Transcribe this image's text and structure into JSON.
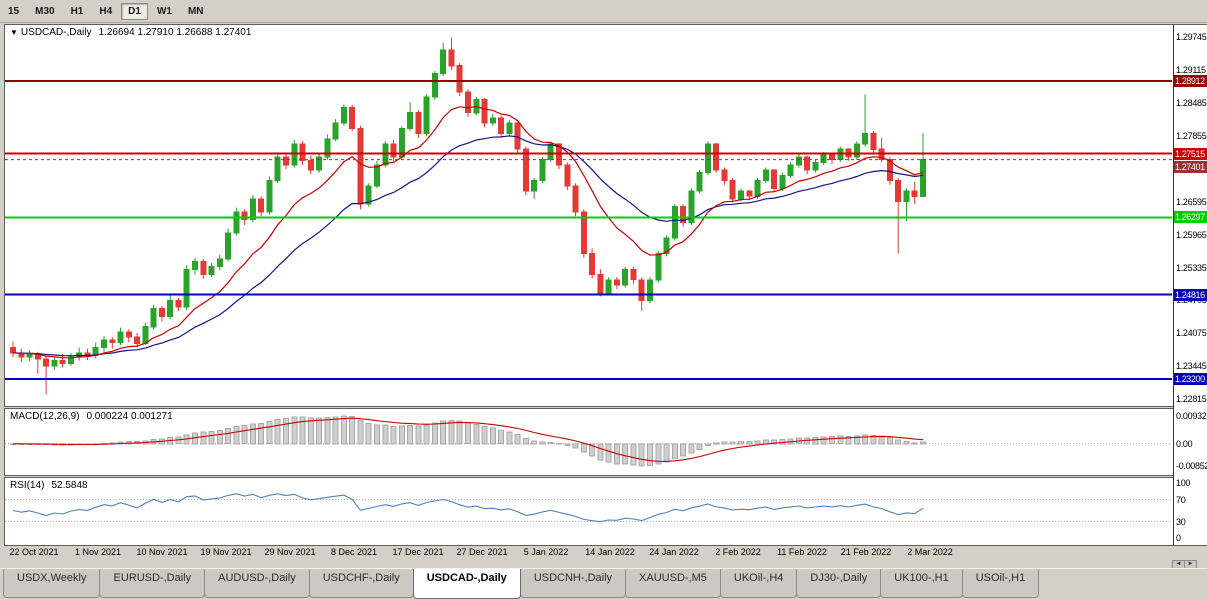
{
  "toolbar": {
    "timeframes": [
      "15",
      "M30",
      "H1",
      "H4",
      "D1",
      "W1",
      "MN"
    ],
    "active": "D1"
  },
  "tabs": {
    "items": [
      "USDX,Weekly",
      "EURUSD-,Daily",
      "AUDUSD-,Daily",
      "USDCHF-,Daily",
      "USDCAD-,Daily",
      "USDCNH-,Daily",
      "XAUUSD-,M5",
      "UKOil-,H4",
      "DJ30-,Daily",
      "UK100-,H1",
      "USOil-,H1"
    ],
    "active": "USDCAD-,Daily"
  },
  "scroll": {
    "left_arrow": "◄",
    "right_arrow": "►"
  },
  "chart_data": {
    "type": "candlestick",
    "collapse_icon": "▼",
    "title": "USDCAD-,Daily",
    "current_ohlc_text": "1.26694 1.27910 1.26688 1.27401",
    "current_ohlc": {
      "open": 1.26694,
      "high": 1.2791,
      "low": 1.26688,
      "close": 1.27401
    },
    "price_max": 1.2998,
    "price_min": 1.2272,
    "price_ticks": [
      "1.29745",
      "1.29115",
      "1.28485",
      "1.27855",
      "1.27225",
      "1.26595",
      "1.25965",
      "1.25335",
      "1.24705",
      "1.24075",
      "1.23445",
      "1.22815"
    ],
    "x_labels": [
      "22 Oct 2021",
      "1 Nov 2021",
      "10 Nov 2021",
      "19 Nov 2021",
      "29 Nov 2021",
      "8 Dec 2021",
      "17 Dec 2021",
      "27 Dec 2021",
      "5 Jan 2022",
      "14 Jan 2022",
      "24 Jan 2022",
      "2 Feb 2022",
      "11 Feb 2022",
      "21 Feb 2022",
      "2 Mar 2022"
    ],
    "candle_up_color": "#29a329",
    "candle_down_color": "#e53935",
    "hlines": [
      {
        "price": 1.28912,
        "label": "1.28912",
        "color": "#990000"
      },
      {
        "price": 1.27515,
        "label": "1.27515",
        "color": "#cc0000"
      },
      {
        "price": 1.26297,
        "label": "1.26297",
        "color": "#00cc00"
      },
      {
        "price": 1.24816,
        "label": "1.24816",
        "color": "#0000bb"
      },
      {
        "price": 1.232,
        "label": "1.23200",
        "color": "#0000bb"
      }
    ],
    "current_price": {
      "price": 1.27401,
      "label": "1.27401",
      "color": "#993333"
    },
    "overlays": {
      "ma_fast": {
        "period": 12,
        "color": "#cc0000"
      },
      "ma_slow": {
        "period": 26,
        "color": "#151589"
      }
    },
    "macd": {
      "label": "MACD(12,26,9)",
      "values_text": "0.000224 0.001271",
      "params": [
        12,
        26,
        9
      ],
      "axis_labels": [
        "0.00932",
        "0.00",
        "-0.00852"
      ],
      "hist_color": "#cfcfcf",
      "hist_border": "#a9a9a9",
      "signal_color": "#cc0000"
    },
    "rsi": {
      "label": "RSI(14)",
      "value_text": "52.5848",
      "period": 14,
      "axis_labels": [
        "100",
        "70",
        "30",
        "0"
      ],
      "levels": [
        70,
        30
      ],
      "line_color": "#4f81bd"
    },
    "candles": [
      [
        1.238,
        1.2392,
        1.2362,
        1.237
      ],
      [
        1.237,
        1.2378,
        1.2352,
        1.2362
      ],
      [
        1.2362,
        1.2375,
        1.2355,
        1.2368
      ],
      [
        1.2368,
        1.2372,
        1.233,
        1.2358
      ],
      [
        1.2358,
        1.2365,
        1.229,
        1.2345
      ],
      [
        1.2345,
        1.2362,
        1.2338,
        1.2355
      ],
      [
        1.2355,
        1.2368,
        1.2342,
        1.235
      ],
      [
        1.235,
        1.237,
        1.2345,
        1.2362
      ],
      [
        1.2362,
        1.238,
        1.2355,
        1.237
      ],
      [
        1.237,
        1.2378,
        1.2356,
        1.2365
      ],
      [
        1.2365,
        1.239,
        1.236,
        1.238
      ],
      [
        1.238,
        1.2402,
        1.2372,
        1.2395
      ],
      [
        1.2395,
        1.24,
        1.2378,
        1.239
      ],
      [
        1.239,
        1.2418,
        1.2385,
        1.241
      ],
      [
        1.241,
        1.2415,
        1.239,
        1.24
      ],
      [
        1.24,
        1.2408,
        1.238,
        1.2388
      ],
      [
        1.2388,
        1.2428,
        1.2385,
        1.242
      ],
      [
        1.242,
        1.2462,
        1.2415,
        1.2455
      ],
      [
        1.2455,
        1.246,
        1.243,
        1.244
      ],
      [
        1.244,
        1.248,
        1.2435,
        1.247
      ],
      [
        1.247,
        1.2475,
        1.245,
        1.2458
      ],
      [
        1.2458,
        1.2538,
        1.2452,
        1.253
      ],
      [
        1.253,
        1.2552,
        1.252,
        1.2545
      ],
      [
        1.2545,
        1.255,
        1.2512,
        1.252
      ],
      [
        1.252,
        1.2542,
        1.2515,
        1.2535
      ],
      [
        1.2535,
        1.2558,
        1.2528,
        1.255
      ],
      [
        1.255,
        1.2608,
        1.2545,
        1.26
      ],
      [
        1.26,
        1.2648,
        1.2595,
        1.264
      ],
      [
        1.264,
        1.2645,
        1.2615,
        1.2625
      ],
      [
        1.2625,
        1.2672,
        1.262,
        1.2665
      ],
      [
        1.2665,
        1.267,
        1.2632,
        1.264
      ],
      [
        1.264,
        1.2708,
        1.2635,
        1.27
      ],
      [
        1.27,
        1.2752,
        1.2695,
        1.2745
      ],
      [
        1.2745,
        1.275,
        1.2722,
        1.273
      ],
      [
        1.273,
        1.2778,
        1.2725,
        1.277
      ],
      [
        1.277,
        1.2775,
        1.273,
        1.2738
      ],
      [
        1.2738,
        1.2748,
        1.2712,
        1.272
      ],
      [
        1.272,
        1.275,
        1.2715,
        1.2745
      ],
      [
        1.2745,
        1.2788,
        1.274,
        1.278
      ],
      [
        1.278,
        1.2818,
        1.2775,
        1.281
      ],
      [
        1.281,
        1.2846,
        1.2805,
        1.284
      ],
      [
        1.284,
        1.2845,
        1.2795,
        1.28
      ],
      [
        1.28,
        1.2805,
        1.2645,
        1.2655
      ],
      [
        1.2655,
        1.2695,
        1.265,
        1.269
      ],
      [
        1.269,
        1.2738,
        1.2685,
        1.273
      ],
      [
        1.273,
        1.2775,
        1.2725,
        1.277
      ],
      [
        1.277,
        1.2778,
        1.2738,
        1.2745
      ],
      [
        1.2745,
        1.2805,
        1.274,
        1.28
      ],
      [
        1.28,
        1.285,
        1.2795,
        1.283
      ],
      [
        1.283,
        1.2835,
        1.2782,
        1.279
      ],
      [
        1.279,
        1.2865,
        1.2785,
        1.286
      ],
      [
        1.286,
        1.291,
        1.2855,
        1.2905
      ],
      [
        1.2905,
        1.2964,
        1.29,
        1.295
      ],
      [
        1.295,
        1.2974,
        1.2912,
        1.292
      ],
      [
        1.292,
        1.2925,
        1.2862,
        1.287
      ],
      [
        1.287,
        1.2875,
        1.2822,
        1.283
      ],
      [
        1.283,
        1.286,
        1.2825,
        1.2855
      ],
      [
        1.2855,
        1.2858,
        1.2802,
        1.281
      ],
      [
        1.281,
        1.2828,
        1.2805,
        1.282
      ],
      [
        1.282,
        1.2825,
        1.2782,
        1.279
      ],
      [
        1.279,
        1.2815,
        1.2785,
        1.281
      ],
      [
        1.281,
        1.2812,
        1.2752,
        1.276
      ],
      [
        1.276,
        1.2765,
        1.2672,
        1.268
      ],
      [
        1.268,
        1.2705,
        1.2665,
        1.27
      ],
      [
        1.27,
        1.2745,
        1.2695,
        1.274
      ],
      [
        1.274,
        1.2775,
        1.2735,
        1.277
      ],
      [
        1.277,
        1.2772,
        1.2722,
        1.273
      ],
      [
        1.273,
        1.2735,
        1.2682,
        1.269
      ],
      [
        1.269,
        1.2695,
        1.2632,
        1.264
      ],
      [
        1.264,
        1.2645,
        1.2552,
        1.256
      ],
      [
        1.256,
        1.257,
        1.2512,
        1.252
      ],
      [
        1.252,
        1.253,
        1.2478,
        1.2485
      ],
      [
        1.2485,
        1.2515,
        1.248,
        1.251
      ],
      [
        1.251,
        1.2515,
        1.2492,
        1.25
      ],
      [
        1.25,
        1.2535,
        1.2495,
        1.253
      ],
      [
        1.253,
        1.2535,
        1.2502,
        1.251
      ],
      [
        1.251,
        1.2515,
        1.245,
        1.247
      ],
      [
        1.247,
        1.2515,
        1.2465,
        1.251
      ],
      [
        1.251,
        1.2565,
        1.2505,
        1.256
      ],
      [
        1.256,
        1.2595,
        1.2555,
        1.259
      ],
      [
        1.259,
        1.2655,
        1.2585,
        1.265
      ],
      [
        1.265,
        1.2655,
        1.2612,
        1.262
      ],
      [
        1.262,
        1.2685,
        1.2615,
        1.268
      ],
      [
        1.268,
        1.272,
        1.2675,
        1.2715
      ],
      [
        1.2715,
        1.2775,
        1.271,
        1.277
      ],
      [
        1.277,
        1.2772,
        1.2715,
        1.272
      ],
      [
        1.272,
        1.2725,
        1.2692,
        1.27
      ],
      [
        1.27,
        1.2705,
        1.2658,
        1.2665
      ],
      [
        1.2665,
        1.2685,
        1.266,
        1.268
      ],
      [
        1.268,
        1.2682,
        1.2662,
        1.267
      ],
      [
        1.267,
        1.2705,
        1.2665,
        1.27
      ],
      [
        1.27,
        1.2725,
        1.2695,
        1.272
      ],
      [
        1.272,
        1.2722,
        1.2678,
        1.2685
      ],
      [
        1.2685,
        1.2715,
        1.268,
        1.271
      ],
      [
        1.271,
        1.2735,
        1.2705,
        1.273
      ],
      [
        1.273,
        1.275,
        1.2725,
        1.2745
      ],
      [
        1.2745,
        1.2748,
        1.2712,
        1.272
      ],
      [
        1.272,
        1.274,
        1.2715,
        1.2735
      ],
      [
        1.2735,
        1.2755,
        1.273,
        1.275
      ],
      [
        1.275,
        1.2752,
        1.2732,
        1.274
      ],
      [
        1.274,
        1.2765,
        1.2735,
        1.276
      ],
      [
        1.276,
        1.2762,
        1.2738,
        1.2745
      ],
      [
        1.2745,
        1.2775,
        1.274,
        1.277
      ],
      [
        1.277,
        1.2865,
        1.2765,
        1.279
      ],
      [
        1.279,
        1.2795,
        1.2752,
        1.276
      ],
      [
        1.276,
        1.2782,
        1.2735,
        1.274
      ],
      [
        1.274,
        1.2745,
        1.2692,
        1.27
      ],
      [
        1.27,
        1.2705,
        1.256,
        1.266
      ],
      [
        1.266,
        1.2685,
        1.2622,
        1.268
      ],
      [
        1.268,
        1.2698,
        1.2655,
        1.2669
      ],
      [
        1.26694,
        1.2791,
        1.26688,
        1.27401
      ]
    ]
  }
}
